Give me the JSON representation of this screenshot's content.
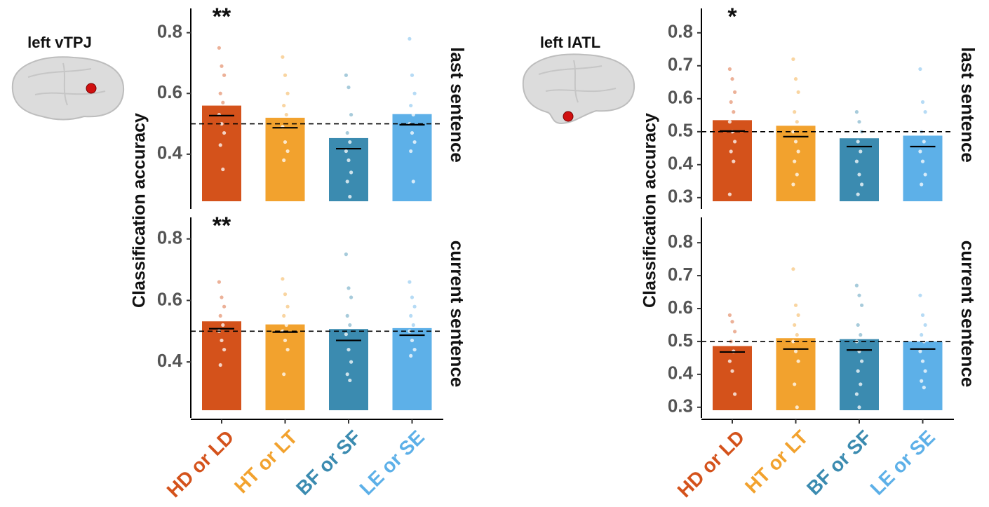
{
  "chart_data": [
    {
      "type": "bar",
      "title": "left vTPJ",
      "y_label": "Classification accuracy",
      "categories": [
        "HD or LD",
        "HT or LT",
        "BF or SF",
        "LE or SE"
      ],
      "colors": [
        "#d4521b",
        "#f2a22e",
        "#3b8bb0",
        "#5db0e8"
      ],
      "panels": [
        {
          "label": "last sentence",
          "annotation": "**",
          "ylim": [
            0.245,
            0.88
          ],
          "yticks": [
            0.4,
            0.6,
            0.8
          ],
          "chance": 0.5,
          "values": [
            0.56,
            0.52,
            0.453,
            0.532
          ],
          "medians": [
            0.527,
            0.487,
            0.418,
            0.497
          ],
          "points": [
            [
              0.75,
              0.69,
              0.66,
              0.6,
              0.57,
              0.53,
              0.5,
              0.47,
              0.43,
              0.35
            ],
            [
              0.72,
              0.66,
              0.6,
              0.56,
              0.53,
              0.49,
              0.44,
              0.41,
              0.38
            ],
            [
              0.66,
              0.62,
              0.53,
              0.47,
              0.44,
              0.41,
              0.38,
              0.34,
              0.31,
              0.26
            ],
            [
              0.78,
              0.66,
              0.6,
              0.56,
              0.53,
              0.5,
              0.47,
              0.44,
              0.41,
              0.31
            ]
          ]
        },
        {
          "label": "current sentence",
          "annotation": "**",
          "ylim": [
            0.243,
            0.87
          ],
          "yticks": [
            0.4,
            0.6,
            0.8
          ],
          "chance": 0.5,
          "values": [
            0.532,
            0.522,
            0.507,
            0.51
          ],
          "medians": [
            0.508,
            0.497,
            0.47,
            0.487
          ],
          "points": [
            [
              0.66,
              0.61,
              0.58,
              0.55,
              0.52,
              0.5,
              0.47,
              0.44,
              0.39
            ],
            [
              0.67,
              0.62,
              0.58,
              0.55,
              0.52,
              0.5,
              0.47,
              0.44,
              0.36
            ],
            [
              0.75,
              0.64,
              0.61,
              0.55,
              0.52,
              0.49,
              0.44,
              0.4,
              0.36,
              0.34
            ],
            [
              0.66,
              0.61,
              0.58,
              0.55,
              0.52,
              0.5,
              0.47,
              0.44,
              0.42
            ]
          ]
        }
      ]
    },
    {
      "type": "bar",
      "title": "left lATL",
      "y_label": "Classification accuracy",
      "categories": [
        "HD or LD",
        "HT or LT",
        "BF or SF",
        "LE or SE"
      ],
      "colors": [
        "#d4521b",
        "#f2a22e",
        "#3b8bb0",
        "#5db0e8"
      ],
      "panels": [
        {
          "label": "last sentence",
          "annotation": "*",
          "ylim": [
            0.289,
            0.874
          ],
          "yticks": [
            0.3,
            0.4,
            0.5,
            0.6,
            0.7,
            0.8
          ],
          "chance": 0.5,
          "values": [
            0.535,
            0.518,
            0.48,
            0.488
          ],
          "medians": [
            0.502,
            0.485,
            0.455,
            0.455
          ],
          "points": [
            [
              0.69,
              0.66,
              0.62,
              0.59,
              0.56,
              0.53,
              0.5,
              0.47,
              0.44,
              0.41,
              0.31
            ],
            [
              0.72,
              0.66,
              0.62,
              0.56,
              0.53,
              0.5,
              0.47,
              0.44,
              0.41,
              0.37,
              0.34
            ],
            [
              0.56,
              0.53,
              0.5,
              0.47,
              0.44,
              0.41,
              0.37,
              0.34,
              0.31
            ],
            [
              0.69,
              0.59,
              0.56,
              0.5,
              0.47,
              0.44,
              0.41,
              0.37,
              0.34
            ]
          ]
        },
        {
          "label": "current sentence",
          "ylim": [
            0.291,
            0.877
          ],
          "yticks": [
            0.3,
            0.4,
            0.5,
            0.6,
            0.7,
            0.8
          ],
          "chance": 0.5,
          "values": [
            0.486,
            0.51,
            0.507,
            0.5
          ],
          "medians": [
            0.468,
            0.477,
            0.474,
            0.477
          ],
          "points": [
            [
              0.58,
              0.56,
              0.53,
              0.5,
              0.47,
              0.44,
              0.41,
              0.34
            ],
            [
              0.72,
              0.61,
              0.58,
              0.55,
              0.52,
              0.5,
              0.47,
              0.44,
              0.37,
              0.3
            ],
            [
              0.67,
              0.64,
              0.61,
              0.55,
              0.52,
              0.5,
              0.47,
              0.44,
              0.41,
              0.37,
              0.34,
              0.3
            ],
            [
              0.64,
              0.58,
              0.55,
              0.52,
              0.5,
              0.47,
              0.44,
              0.41,
              0.38,
              0.36
            ]
          ]
        }
      ]
    }
  ]
}
